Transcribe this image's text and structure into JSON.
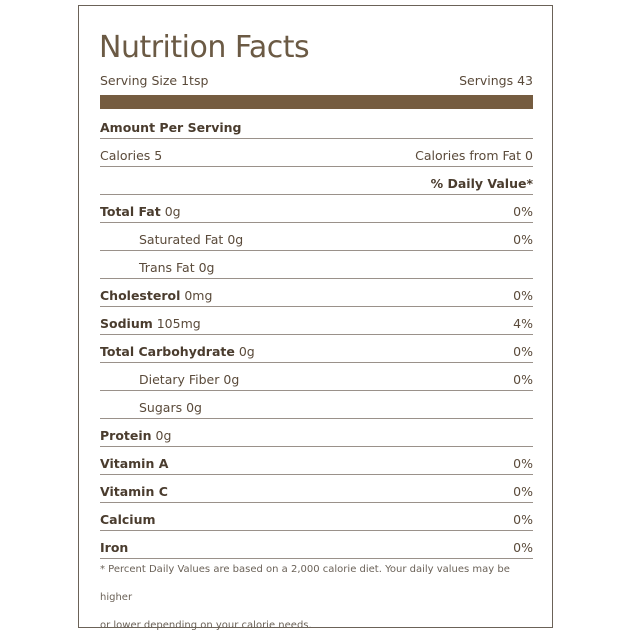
{
  "title": "Nutrition Facts",
  "serving": {
    "size": "Serving Size 1tsp",
    "servings": "Servings 43"
  },
  "header": {
    "amount_per_serving": "Amount Per Serving",
    "calories": "Calories 5",
    "calories_from_fat": "Calories from Fat 0",
    "daily_value_header": "% Daily Value*"
  },
  "nutrients": [
    {
      "name": "Total Fat",
      "amount": "0g",
      "dv": "0%"
    },
    {
      "name": "Saturated Fat",
      "amount": "0g",
      "dv": "0%"
    },
    {
      "name": "Trans Fat",
      "amount": "0g",
      "dv": ""
    },
    {
      "name": "Cholesterol",
      "amount": "0mg",
      "dv": "0%"
    },
    {
      "name": "Sodium",
      "amount": "105mg",
      "dv": "4%"
    },
    {
      "name": "Total Carbohydrate",
      "amount": "0g",
      "dv": "0%"
    },
    {
      "name": "Dietary Fiber",
      "amount": "0g",
      "dv": "0%"
    },
    {
      "name": "Sugars",
      "amount": "0g",
      "dv": ""
    },
    {
      "name": "Protein",
      "amount": "0g",
      "dv": ""
    }
  ],
  "vitamins": [
    {
      "name": "Vitamin A",
      "dv": "0%"
    },
    {
      "name": "Vitamin C",
      "dv": "0%"
    },
    {
      "name": "Calcium",
      "dv": "0%"
    },
    {
      "name": "Iron",
      "dv": "0%"
    }
  ],
  "footnote": {
    "line1": "* Percent Daily Values are based on a 2,000 calorie diet. Your daily values may be higher",
    "line2": "or lower depending on your calorie needs."
  }
}
